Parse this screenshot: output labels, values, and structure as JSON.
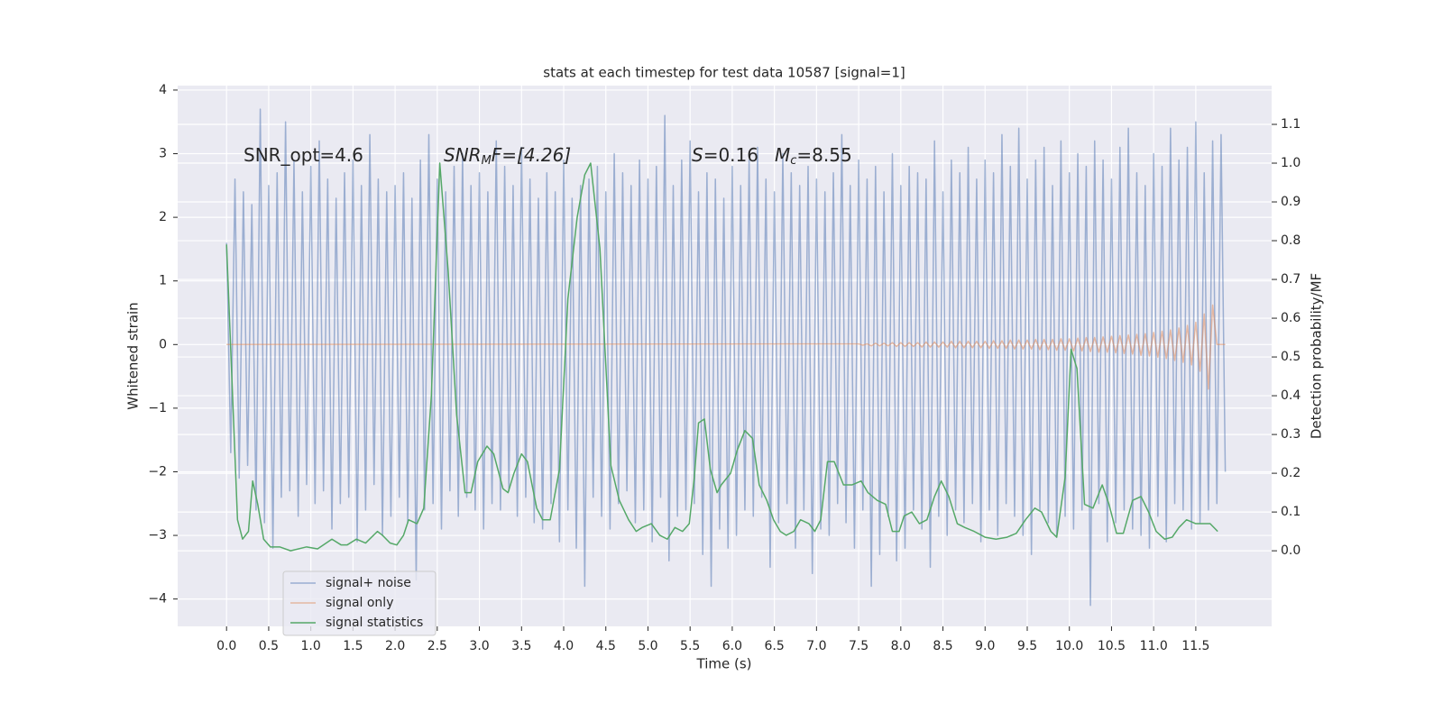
{
  "chart_data": {
    "type": "line",
    "title": "stats at each timestep for test data 10587 [signal=1]",
    "xlabel": "Time (s)",
    "ylabel": "Whitened strain",
    "y2label": "Detection probability/MF",
    "grid": true,
    "legend": "lower left",
    "xlim": [
      -0.58,
      12.4
    ],
    "ylim": [
      -4.43,
      4.07
    ],
    "y2lim": [
      -0.195,
      1.2
    ],
    "xticks": [
      {
        "value": 0,
        "label": "0.0"
      },
      {
        "value": 0.5,
        "label": "0.5"
      },
      {
        "value": 1,
        "label": "1.0"
      },
      {
        "value": 1.5,
        "label": "1.5"
      },
      {
        "value": 2,
        "label": "2.0"
      },
      {
        "value": 2.5,
        "label": "2.5"
      },
      {
        "value": 3,
        "label": "3.0"
      },
      {
        "value": 3.5,
        "label": "3.5"
      },
      {
        "value": 4,
        "label": "4.0"
      },
      {
        "value": 4.5,
        "label": "4.5"
      },
      {
        "value": 5,
        "label": "5.0"
      },
      {
        "value": 5.5,
        "label": "5.5"
      },
      {
        "value": 6,
        "label": "6.0"
      },
      {
        "value": 6.5,
        "label": "6.5"
      },
      {
        "value": 7,
        "label": "7.0"
      },
      {
        "value": 7.5,
        "label": "7.5"
      },
      {
        "value": 8,
        "label": "8.0"
      },
      {
        "value": 8.5,
        "label": "8.5"
      },
      {
        "value": 9,
        "label": "9.0"
      },
      {
        "value": 9.5,
        "label": "9.5"
      },
      {
        "value": 10,
        "label": "10.0"
      },
      {
        "value": 10.5,
        "label": "10.5"
      },
      {
        "value": 11,
        "label": "11.0"
      },
      {
        "value": 11.5,
        "label": "11.5"
      }
    ],
    "yticks": [
      {
        "value": -4,
        "label": "−4"
      },
      {
        "value": -3,
        "label": "−3"
      },
      {
        "value": -2,
        "label": "−2"
      },
      {
        "value": -1,
        "label": "−1"
      },
      0,
      1,
      2,
      3,
      4
    ],
    "y2ticks": [
      {
        "value": 0,
        "label": "0.0"
      },
      {
        "value": 0.1,
        "label": "0.1"
      },
      {
        "value": 0.2,
        "label": "0.2"
      },
      {
        "value": 0.3,
        "label": "0.3"
      },
      {
        "value": 0.4,
        "label": "0.4"
      },
      {
        "value": 0.5,
        "label": "0.5"
      },
      {
        "value": 0.6,
        "label": "0.6"
      },
      {
        "value": 0.7,
        "label": "0.7"
      },
      {
        "value": 0.8,
        "label": "0.8"
      },
      {
        "value": 0.9,
        "label": "0.9"
      },
      {
        "value": 1,
        "label": "1.0"
      },
      {
        "value": 1.1,
        "label": "1.1"
      }
    ],
    "annotations": [
      [
        "SNR_opt=4.6"
      ],
      [
        "SNR",
        "M",
        "F=[4.26]"
      ],
      [
        "S",
        "=0.16"
      ],
      [
        "M",
        "c",
        "=8.55"
      ]
    ],
    "series": [
      {
        "name": "signal+ noise",
        "color": "#4c72b0",
        "x": [
          0,
          0.05,
          0.1,
          0.15,
          0.2,
          0.25,
          0.3,
          0.35,
          0.4,
          0.45,
          0.5,
          0.55,
          0.6,
          0.65,
          0.7,
          0.75,
          0.8,
          0.85,
          0.9,
          0.95,
          1,
          1.05,
          1.1,
          1.15,
          1.2,
          1.25,
          1.3,
          1.35,
          1.4,
          1.45,
          1.5,
          1.55,
          1.6,
          1.65,
          1.7,
          1.75,
          1.8,
          1.85,
          1.9,
          1.95,
          2,
          2.05,
          2.1,
          2.15,
          2.2,
          2.25,
          2.3,
          2.35,
          2.4,
          2.45,
          2.5,
          2.55,
          2.6,
          2.65,
          2.7,
          2.75,
          2.8,
          2.85,
          2.9,
          2.95,
          3,
          3.05,
          3.1,
          3.15,
          3.2,
          3.25,
          3.3,
          3.35,
          3.4,
          3.45,
          3.5,
          3.55,
          3.6,
          3.65,
          3.7,
          3.75,
          3.8,
          3.85,
          3.9,
          3.95,
          4,
          4.05,
          4.1,
          4.15,
          4.2,
          4.25,
          4.3,
          4.35,
          4.4,
          4.45,
          4.5,
          4.55,
          4.6,
          4.65,
          4.7,
          4.75,
          4.8,
          4.85,
          4.9,
          4.95,
          5,
          5.05,
          5.1,
          5.15,
          5.2,
          5.25,
          5.3,
          5.35,
          5.4,
          5.45,
          5.5,
          5.55,
          5.6,
          5.65,
          5.7,
          5.75,
          5.8,
          5.85,
          5.9,
          5.95,
          6,
          6.05,
          6.1,
          6.15,
          6.2,
          6.25,
          6.3,
          6.35,
          6.4,
          6.45,
          6.5,
          6.55,
          6.6,
          6.65,
          6.7,
          6.75,
          6.8,
          6.85,
          6.9,
          6.95,
          7,
          7.05,
          7.1,
          7.15,
          7.2,
          7.25,
          7.3,
          7.35,
          7.4,
          7.45,
          7.5,
          7.55,
          7.6,
          7.65,
          7.7,
          7.75,
          7.8,
          7.85,
          7.9,
          7.95,
          8,
          8.05,
          8.1,
          8.15,
          8.2,
          8.25,
          8.3,
          8.35,
          8.4,
          8.45,
          8.5,
          8.55,
          8.6,
          8.65,
          8.7,
          8.75,
          8.8,
          8.85,
          8.9,
          8.95,
          9,
          9.05,
          9.1,
          9.15,
          9.2,
          9.25,
          9.3,
          9.35,
          9.4,
          9.45,
          9.5,
          9.55,
          9.6,
          9.65,
          9.7,
          9.75,
          9.8,
          9.85,
          9.9,
          9.95,
          10,
          10.05,
          10.1,
          10.15,
          10.2,
          10.25,
          10.3,
          10.35,
          10.4,
          10.45,
          10.5,
          10.55,
          10.6,
          10.65,
          10.7,
          10.75,
          10.8,
          10.85,
          10.9,
          10.95,
          11,
          11.05,
          11.1,
          11.15,
          11.2,
          11.25,
          11.3,
          11.35,
          11.4,
          11.45,
          11.5,
          11.55,
          11.6,
          11.65,
          11.7,
          11.75,
          11.8,
          11.85
        ],
        "values": [
          1.6,
          -1.7,
          2.6,
          -2.1,
          2.4,
          -1.9,
          2.2,
          -2.6,
          3.7,
          -2.8,
          2.5,
          -3.2,
          2.7,
          -2.4,
          3.5,
          -2.3,
          2.9,
          -2.7,
          2.4,
          -2.2,
          2.8,
          -2.5,
          3.2,
          -2.3,
          2.6,
          -2.9,
          2.3,
          -2.5,
          2.7,
          -2.4,
          2.9,
          -3.1,
          2.5,
          -2.6,
          3.3,
          -2.2,
          2.6,
          -3.0,
          2.4,
          -2.7,
          2.5,
          -2.4,
          2.7,
          -2.8,
          2.3,
          -3.7,
          2.9,
          -2.6,
          3.3,
          -2.5,
          2.6,
          -2.9,
          2.4,
          -2.3,
          2.8,
          -2.7,
          3.0,
          -2.4,
          2.5,
          -2.6,
          2.7,
          -2.9,
          2.4,
          -2.5,
          3.2,
          -2.6,
          2.8,
          -2.3,
          2.5,
          -2.7,
          3.1,
          -2.4,
          2.6,
          -2.8,
          2.3,
          -2.9,
          2.7,
          -2.5,
          2.4,
          -3.1,
          2.9,
          -2.6,
          2.3,
          -3.2,
          2.5,
          -3.8,
          2.6,
          -2.4,
          2.8,
          -2.7,
          2.4,
          -2.9,
          3.0,
          -2.5,
          2.7,
          -2.3,
          2.5,
          -2.8,
          2.9,
          -2.6,
          2.6,
          -3.1,
          2.8,
          -2.4,
          3.6,
          -3.4,
          2.5,
          -2.7,
          2.9,
          -2.6,
          3.2,
          -2.5,
          2.4,
          -3.3,
          2.7,
          -3.8,
          2.6,
          -2.9,
          2.3,
          -3.2,
          2.8,
          -3.0,
          2.5,
          -2.6,
          2.9,
          -2.7,
          3.1,
          -2.4,
          2.6,
          -3.5,
          2.4,
          -2.8,
          3.0,
          -2.5,
          2.7,
          -3.2,
          2.5,
          -2.6,
          2.8,
          -3.6,
          2.6,
          -2.9,
          2.4,
          -3.0,
          2.7,
          -2.5,
          3.3,
          -2.8,
          2.5,
          -3.2,
          2.9,
          -2.6,
          2.6,
          -3.8,
          2.8,
          -3.3,
          2.4,
          -2.7,
          3.0,
          -3.4,
          2.5,
          -3.2,
          2.8,
          -2.6,
          2.7,
          -2.9,
          2.6,
          -3.5,
          3.2,
          -2.7,
          2.4,
          -3.0,
          2.9,
          -2.6,
          2.7,
          -2.8,
          3.1,
          -2.5,
          2.6,
          -3.1,
          2.9,
          -2.6,
          2.7,
          -3.0,
          3.3,
          -2.5,
          2.8,
          -2.7,
          3.4,
          -3.0,
          2.6,
          -3.3,
          2.9,
          -2.6,
          3.1,
          -2.8,
          2.5,
          -3.0,
          3.2,
          -2.7,
          2.7,
          -2.9,
          3.0,
          -2.6,
          2.8,
          -4.1,
          3.2,
          -2.5,
          2.9,
          -3.1,
          2.6,
          -2.8,
          3.1,
          -2.6,
          3.4,
          -2.9,
          2.7,
          -3.0,
          2.5,
          -3.2,
          3.0,
          -2.7,
          2.8,
          -3.1,
          3.4,
          -2.5,
          2.9,
          -2.6,
          3.1,
          -2.9,
          3.5,
          -2.8,
          2.7,
          -2.6,
          3.2,
          -2.5,
          3.3,
          -2.0
        ]
      },
      {
        "name": "signal only",
        "color": "#dd8452",
        "x": [
          0,
          7.5,
          7.55,
          7.6,
          7.65,
          7.7,
          7.75,
          7.8,
          7.85,
          7.9,
          7.95,
          8,
          8.05,
          8.1,
          8.15,
          8.2,
          8.25,
          8.3,
          8.35,
          8.4,
          8.45,
          8.5,
          8.55,
          8.6,
          8.65,
          8.7,
          8.75,
          8.8,
          8.85,
          8.9,
          8.95,
          9,
          9.05,
          9.1,
          9.15,
          9.2,
          9.25,
          9.3,
          9.35,
          9.4,
          9.45,
          9.5,
          9.55,
          9.6,
          9.65,
          9.7,
          9.75,
          9.8,
          9.85,
          9.9,
          9.95,
          10,
          10.05,
          10.1,
          10.15,
          10.2,
          10.25,
          10.3,
          10.35,
          10.4,
          10.45,
          10.5,
          10.55,
          10.6,
          10.65,
          10.7,
          10.75,
          10.8,
          10.85,
          10.9,
          10.95,
          11,
          11.05,
          11.1,
          11.15,
          11.2,
          11.25,
          11.3,
          11.35,
          11.4,
          11.45,
          11.5,
          11.55,
          11.6,
          11.65,
          11.7,
          11.75,
          11.8,
          11.85
        ],
        "values": [
          0,
          0.01,
          -0.01,
          0.01,
          -0.02,
          0.02,
          -0.02,
          0.02,
          -0.02,
          0.03,
          -0.03,
          0.03,
          -0.03,
          0.03,
          -0.03,
          0.03,
          -0.04,
          0.04,
          -0.04,
          0.04,
          -0.04,
          0.04,
          -0.04,
          0.05,
          -0.05,
          0.05,
          -0.05,
          0.05,
          -0.05,
          0.05,
          -0.05,
          0.05,
          -0.06,
          0.06,
          -0.06,
          0.06,
          -0.06,
          0.07,
          -0.07,
          0.07,
          -0.07,
          0.07,
          -0.07,
          0.08,
          -0.08,
          0.08,
          -0.08,
          0.08,
          -0.09,
          0.09,
          -0.09,
          0.09,
          -0.1,
          0.1,
          -0.1,
          0.11,
          -0.11,
          0.11,
          -0.12,
          0.12,
          -0.12,
          0.13,
          -0.13,
          0.14,
          -0.14,
          0.15,
          -0.15,
          0.16,
          -0.17,
          0.17,
          -0.18,
          0.19,
          -0.2,
          0.21,
          -0.22,
          0.23,
          -0.25,
          0.26,
          -0.28,
          0.3,
          -0.32,
          0.35,
          -0.42,
          0.48,
          -0.7,
          0.62,
          0,
          0,
          0
        ]
      },
      {
        "name": "signal statistics",
        "color": "#55a868",
        "axis": "y2",
        "x": [
          0,
          0.13,
          0.19,
          0.26,
          0.31,
          0.37,
          0.44,
          0.52,
          0.63,
          0.76,
          0.95,
          1.08,
          1.25,
          1.36,
          1.43,
          1.54,
          1.65,
          1.79,
          1.85,
          1.94,
          2.02,
          2.1,
          2.16,
          2.26,
          2.34,
          2.43,
          2.53,
          2.63,
          2.73,
          2.83,
          2.9,
          2.98,
          3.09,
          3.17,
          3.28,
          3.34,
          3.41,
          3.5,
          3.57,
          3.68,
          3.75,
          3.84,
          3.95,
          4.05,
          4.16,
          4.25,
          4.32,
          4.43,
          4.56,
          4.66,
          4.77,
          4.86,
          4.93,
          5.04,
          5.14,
          5.23,
          5.32,
          5.41,
          5.49,
          5.55,
          5.6,
          5.67,
          5.74,
          5.82,
          5.87,
          5.98,
          6.06,
          6.15,
          6.24,
          6.32,
          6.41,
          6.49,
          6.57,
          6.64,
          6.73,
          6.81,
          6.91,
          6.98,
          7.05,
          7.13,
          7.21,
          7.32,
          7.42,
          7.53,
          7.61,
          7.72,
          7.82,
          7.9,
          7.98,
          8.04,
          8.13,
          8.22,
          8.31,
          8.4,
          8.48,
          8.57,
          8.67,
          8.76,
          8.87,
          9.0,
          9.13,
          9.26,
          9.37,
          9.48,
          9.59,
          9.67,
          9.78,
          9.85,
          9.95,
          10.02,
          10.09,
          10.18,
          10.28,
          10.39,
          10.47,
          10.56,
          10.64,
          10.75,
          10.85,
          10.94,
          11.03,
          11.13,
          11.22,
          11.3,
          11.39,
          11.5,
          11.6,
          11.67,
          11.76
        ],
        "values": [
          0.79,
          0.08,
          0.03,
          0.05,
          0.18,
          0.12,
          0.03,
          0.01,
          0.01,
          0.0,
          0.01,
          0.005,
          0.03,
          0.015,
          0.015,
          0.03,
          0.02,
          0.05,
          0.04,
          0.02,
          0.015,
          0.04,
          0.08,
          0.07,
          0.11,
          0.4,
          1.0,
          0.72,
          0.35,
          0.15,
          0.15,
          0.23,
          0.27,
          0.25,
          0.16,
          0.15,
          0.2,
          0.25,
          0.23,
          0.11,
          0.08,
          0.08,
          0.21,
          0.65,
          0.86,
          0.97,
          1.0,
          0.78,
          0.22,
          0.13,
          0.08,
          0.05,
          0.06,
          0.07,
          0.04,
          0.03,
          0.06,
          0.05,
          0.07,
          0.19,
          0.33,
          0.34,
          0.21,
          0.15,
          0.17,
          0.2,
          0.26,
          0.31,
          0.29,
          0.17,
          0.13,
          0.08,
          0.05,
          0.04,
          0.05,
          0.08,
          0.07,
          0.05,
          0.08,
          0.23,
          0.23,
          0.17,
          0.17,
          0.18,
          0.15,
          0.13,
          0.12,
          0.05,
          0.05,
          0.09,
          0.1,
          0.07,
          0.08,
          0.14,
          0.18,
          0.14,
          0.07,
          0.06,
          0.05,
          0.035,
          0.03,
          0.035,
          0.045,
          0.08,
          0.11,
          0.1,
          0.05,
          0.035,
          0.19,
          0.52,
          0.47,
          0.12,
          0.11,
          0.17,
          0.12,
          0.045,
          0.045,
          0.13,
          0.14,
          0.1,
          0.05,
          0.03,
          0.035,
          0.06,
          0.08,
          0.07,
          0.07,
          0.07,
          0.05
        ]
      }
    ]
  }
}
